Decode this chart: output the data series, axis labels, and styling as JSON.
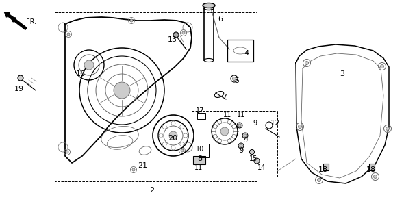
{
  "bg_color": "#ffffff",
  "line_color": "#000000",
  "gray_color": "#666666",
  "light_gray": "#cccccc",
  "fig_width": 5.9,
  "fig_height": 3.01,
  "dpi": 100
}
